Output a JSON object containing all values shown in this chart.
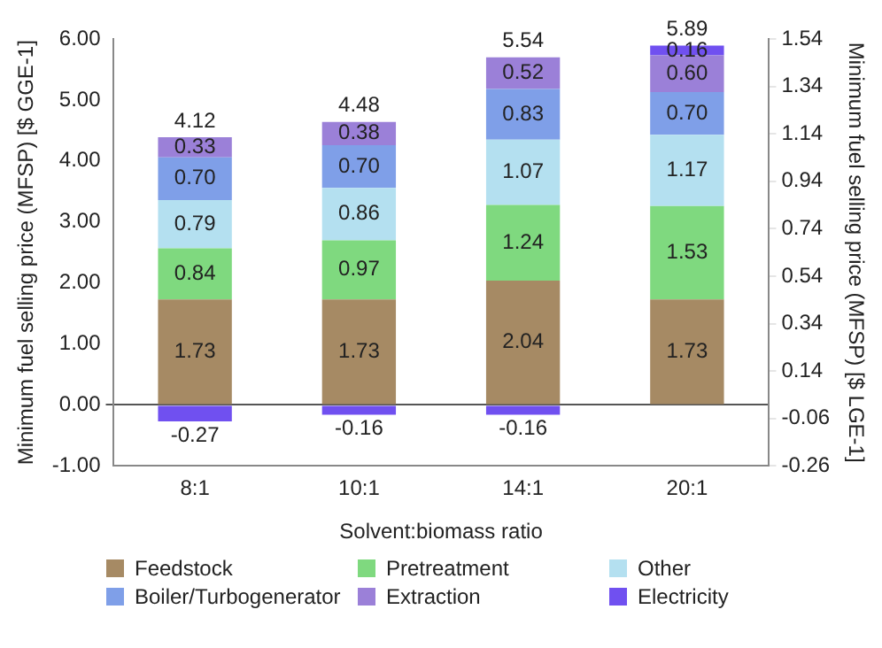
{
  "chart_data": {
    "type": "bar",
    "stacked": true,
    "xlabel": "Solvent:biomass ratio",
    "ylabel": "Minimum fuel selling price (MFSP) [$ GGE-1]",
    "y2label": "Minimum fuel selling price (MFSP) [$ LGE-1]",
    "categories": [
      "8:1",
      "10:1",
      "14:1",
      "20:1"
    ],
    "series": [
      {
        "name": "Feedstock",
        "color": "#a68a64",
        "values": [
          1.73,
          1.73,
          2.04,
          1.73
        ],
        "value_labels": [
          "1.73",
          "1.73",
          "2.04",
          "1.73"
        ]
      },
      {
        "name": "Pretreatment",
        "color": "#7fd97f",
        "values": [
          0.84,
          0.97,
          1.24,
          1.53
        ],
        "value_labels": [
          "0.84",
          "0.97",
          "1.24",
          "1.53"
        ]
      },
      {
        "name": "Other",
        "color": "#b4e0f0",
        "values": [
          0.79,
          0.86,
          1.07,
          1.17
        ],
        "value_labels": [
          "0.79",
          "0.86",
          "1.07",
          "1.17"
        ]
      },
      {
        "name": "Boiler/Turbogenerator",
        "color": "#7f9fe8",
        "values": [
          0.7,
          0.7,
          0.83,
          0.7
        ],
        "value_labels": [
          "0.70",
          "0.70",
          "0.83",
          "0.70"
        ]
      },
      {
        "name": "Extraction",
        "color": "#9b80d8",
        "values": [
          0.33,
          0.38,
          0.52,
          0.6
        ],
        "value_labels": [
          "0.33",
          "0.38",
          "0.52",
          "0.60"
        ]
      },
      {
        "name": "Electricity",
        "color": "#7050f0",
        "values": [
          -0.27,
          -0.16,
          -0.16,
          0.16
        ],
        "value_labels": [
          "-0.27",
          "-0.16",
          "-0.16",
          "0.16"
        ]
      }
    ],
    "totals": [
      "4.12",
      "4.48",
      "5.54",
      "5.89"
    ],
    "ylim": [
      -1,
      6
    ],
    "yticks": [
      {
        "value": -1,
        "label": "-1.00"
      },
      {
        "value": 0,
        "label": "0.00"
      },
      {
        "value": 1,
        "label": "1.00"
      },
      {
        "value": 2,
        "label": "2.00"
      },
      {
        "value": 3,
        "label": "3.00"
      },
      {
        "value": 4,
        "label": "4.00"
      },
      {
        "value": 5,
        "label": "5.00"
      },
      {
        "value": 6,
        "label": "6.00"
      }
    ],
    "y2lim": [
      -0.26,
      1.54
    ],
    "y2ticks": [
      -0.26,
      -0.06,
      0.14,
      0.34,
      0.54,
      0.74,
      0.94,
      1.14,
      1.34,
      1.54
    ],
    "legend": "bottom"
  }
}
